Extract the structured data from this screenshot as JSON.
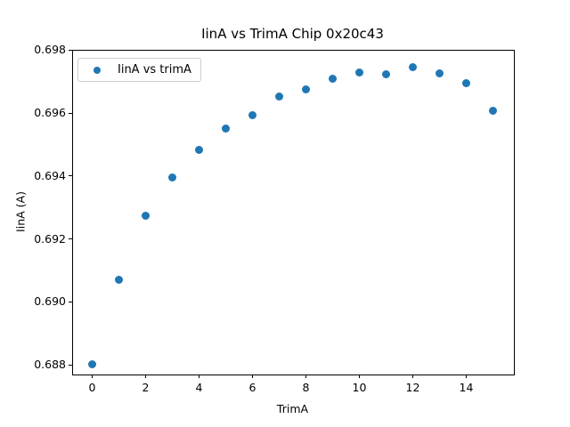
{
  "figure": {
    "background": "#ffffff"
  },
  "chart_data": {
    "type": "scatter",
    "title": "IinA vs TrimA Chip 0x20c43",
    "xlabel": "TrimA",
    "ylabel": "IinA (A)",
    "legend": {
      "label": "IinA vs trimA",
      "position": "upper left"
    },
    "series": [
      {
        "name": "IinA vs trimA",
        "marker": "circle",
        "color": "#1f77b4",
        "x": [
          0,
          1,
          2,
          3,
          4,
          5,
          6,
          7,
          8,
          9,
          10,
          11,
          12,
          13,
          14,
          15
        ],
        "y": [
          0.68802,
          0.69069,
          0.69274,
          0.69395,
          0.69483,
          0.6955,
          0.69594,
          0.69652,
          0.69674,
          0.69708,
          0.6973,
          0.69724,
          0.69745,
          0.69726,
          0.69695,
          0.69607
        ]
      }
    ],
    "xlim": [
      -0.75,
      15.75
    ],
    "ylim": [
      0.68772,
      0.69801
    ],
    "xticks": [
      "0",
      "2",
      "4",
      "6",
      "8",
      "10",
      "12",
      "14"
    ],
    "yticks": [
      "0.688",
      "0.690",
      "0.692",
      "0.694",
      "0.696",
      "0.698"
    ],
    "grid": false,
    "axis_color": "#000000",
    "legend_edge_color": "#cccccc"
  }
}
